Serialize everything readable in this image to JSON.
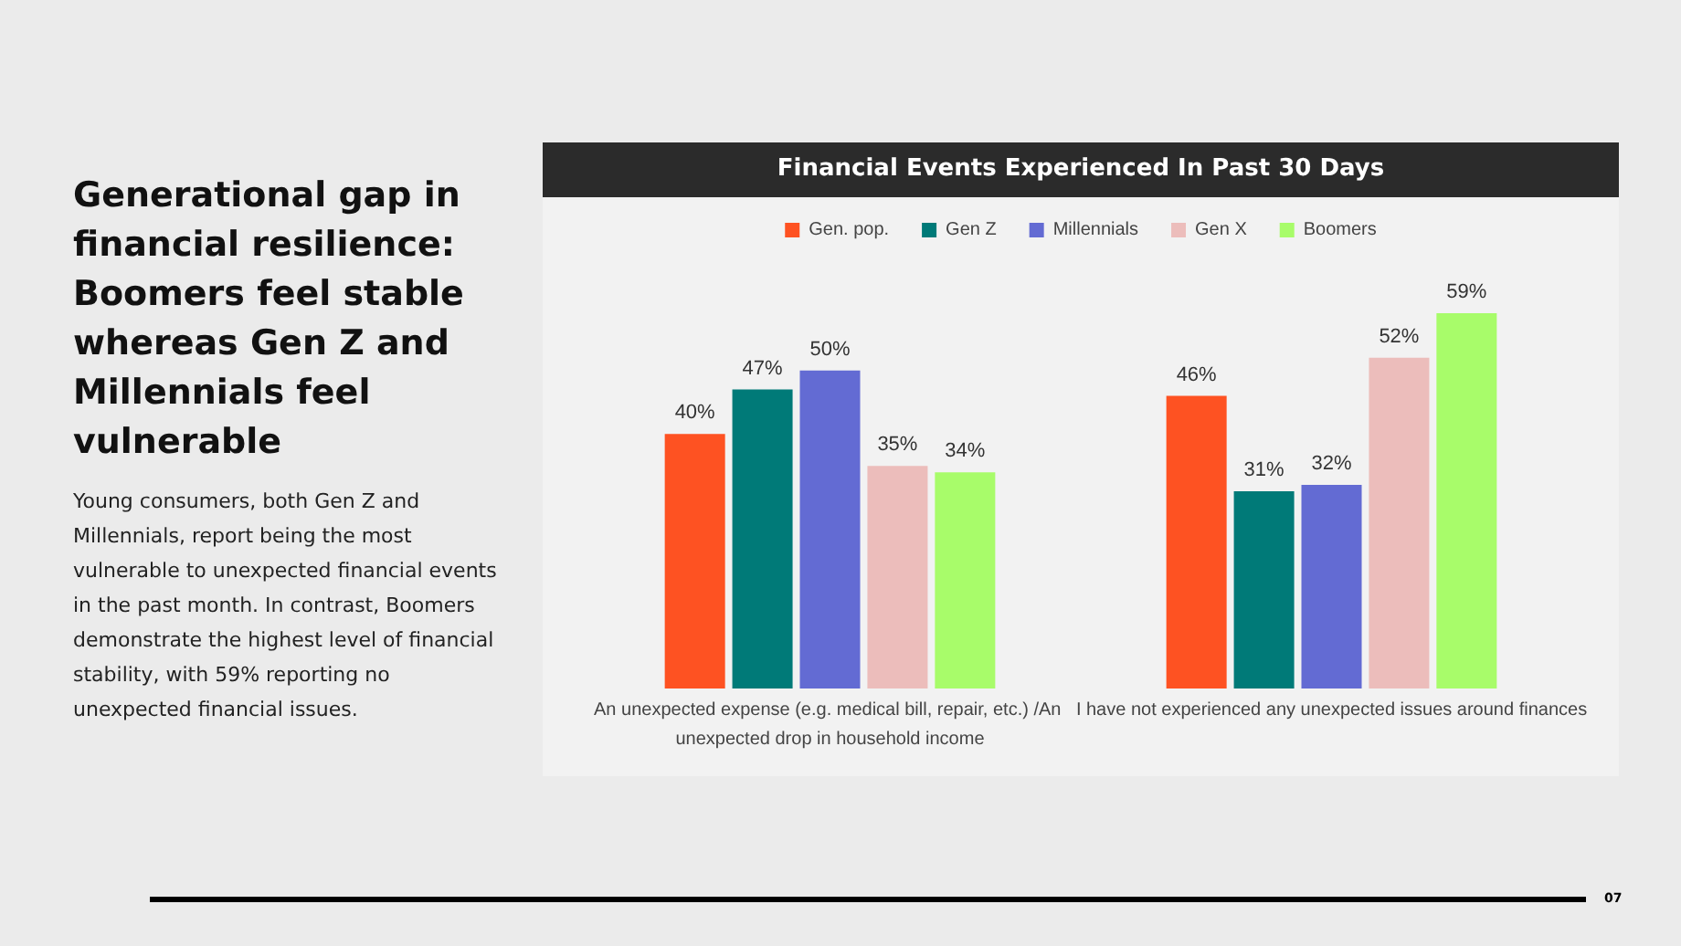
{
  "chart_data": {
    "type": "bar",
    "title": "Financial Events Experienced In Past 30 Days",
    "categories": [
      "An unexpected expense (e.g. medical bill, repair, etc.) /An unexpected drop in household income",
      "I have not experienced any unexpected issues around finances"
    ],
    "series": [
      {
        "name": "Gen. pop.",
        "color": "#fe5222",
        "values": [
          40,
          46
        ],
        "value_labels": [
          "40%",
          "46%"
        ]
      },
      {
        "name": "Gen Z",
        "color": "#007a78",
        "values": [
          47,
          31
        ],
        "value_labels": [
          "47%",
          "31%"
        ]
      },
      {
        "name": "Millennials",
        "color": "#636bd3",
        "values": [
          50,
          32
        ],
        "value_labels": [
          "50%",
          "32%"
        ]
      },
      {
        "name": "Gen X",
        "color": "#ecbdbb",
        "values": [
          35,
          52
        ],
        "value_labels": [
          "35%",
          "52%"
        ]
      },
      {
        "name": "Boomers",
        "color": "#a8fc6a",
        "values": [
          34,
          59
        ],
        "value_labels": [
          "34%",
          "59%"
        ]
      }
    ],
    "legend": "top",
    "grid": false,
    "annotations": [
      "Generational gap in financial resilience: Boomers feel stable whereas Gen Z and Millennials feel vulnerable",
      "Young consumers, both Gen Z and Millennials, report being the most vulnerable to unexpected financial events in the past month. In contrast, Boomers demonstrate the highest level of financial stability, with 59% reporting no unexpected financial issues.",
      "07"
    ]
  }
}
